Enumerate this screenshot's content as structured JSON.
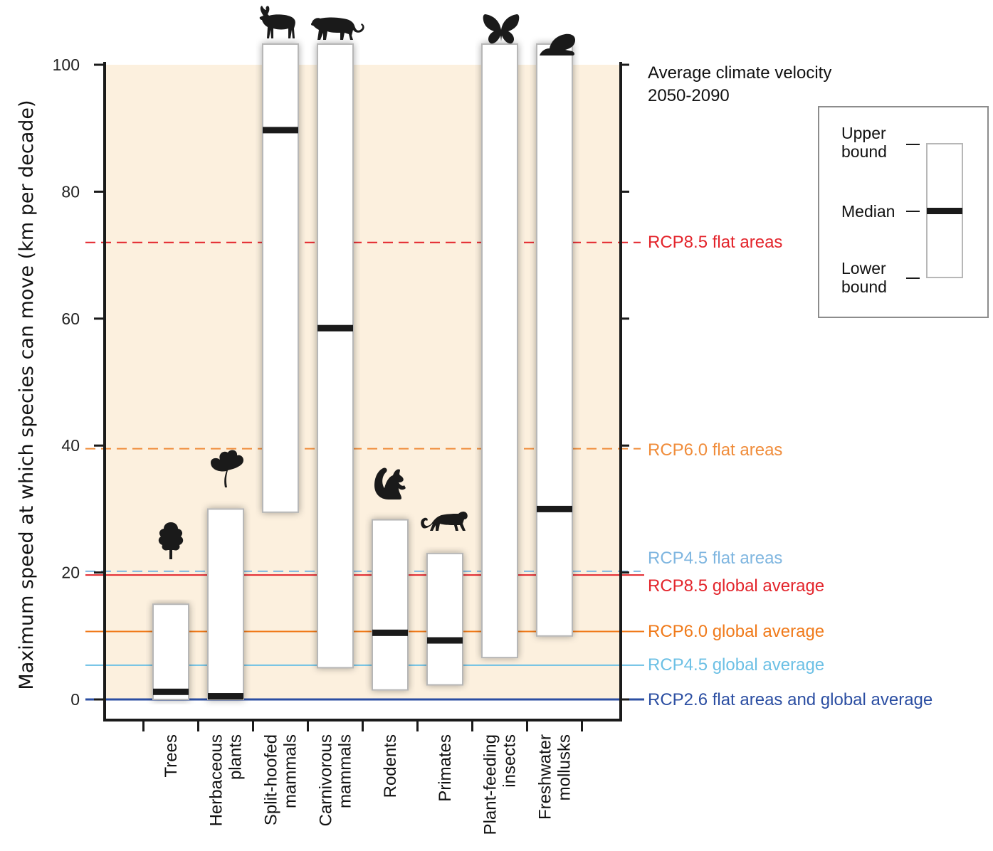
{
  "chart_data": {
    "type": "range-bar",
    "ylabel": "Maximum speed at which species can move (km per decade)",
    "ylim": [
      0,
      100
    ],
    "yticks": [
      0,
      20,
      40,
      60,
      80,
      100
    ],
    "categories": [
      "Trees",
      "Herbaceous\nplants",
      "Split-hoofed\nmammals",
      "Carnivorous\nmammals",
      "Rodents",
      "Primates",
      "Plant-feeding\ninsects",
      "Freshwater\nmollusks"
    ],
    "icons": [
      "tree-icon",
      "herb-icon",
      "moose-icon",
      "cougar-icon",
      "squirrel-icon",
      "monkey-icon",
      "butterfly-icon",
      "snail-icon"
    ],
    "lower": [
      0,
      0,
      29.5,
      5,
      1.5,
      2.3,
      6.6,
      10
    ],
    "upper": [
      15,
      30,
      100,
      100,
      28.3,
      23,
      100,
      100
    ],
    "median": [
      1.2,
      0.5,
      89.7,
      58.5,
      10.5,
      9.3,
      null,
      30
    ],
    "climate_velocity_title": "Average climate velocity\n2050-2090",
    "reference_lines": [
      {
        "label": "RCP8.5 flat areas",
        "value": 72,
        "color": "#e3242b",
        "style": "dashed"
      },
      {
        "label": "RCP6.0 flat areas",
        "value": 39.5,
        "color": "#f08c3a",
        "style": "dashed"
      },
      {
        "label": "RCP4.5 flat areas",
        "value": 20.2,
        "color": "#7fb6e0",
        "style": "dashed"
      },
      {
        "label": "RCP8.5 global average",
        "value": 19.6,
        "color": "#e3242b",
        "style": "solid"
      },
      {
        "label": "RCP6.0 global average",
        "value": 10.7,
        "color": "#f07a1a",
        "style": "solid"
      },
      {
        "label": "RCP4.5 global average",
        "value": 5.4,
        "color": "#6cc0e5",
        "style": "solid"
      },
      {
        "label": "RCP2.6  flat areas and global average",
        "value": 0,
        "color": "#2b4ea2",
        "style": "solid"
      }
    ],
    "legend": {
      "upper": "Upper\nbound",
      "median": "Median",
      "lower": "Lower\nbound"
    },
    "colors": {
      "background": "#fcf0de",
      "box_fill": "#ffffff",
      "box_stroke": "#b7b7b7",
      "median": "#1a1a1a",
      "axis": "#1a1a1a"
    }
  }
}
